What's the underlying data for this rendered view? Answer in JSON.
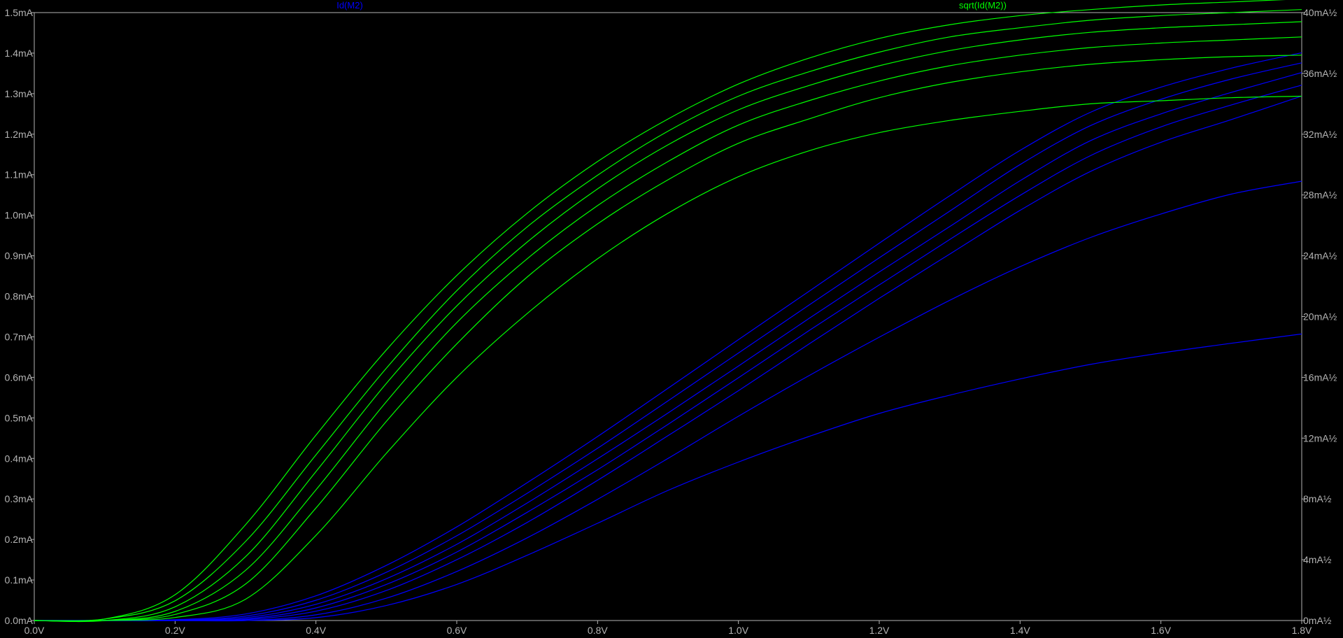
{
  "chart_data": {
    "type": "line",
    "x_tick_labels": [
      "0.0V",
      "0.2V",
      "0.4V",
      "0.6V",
      "0.8V",
      "1.0V",
      "1.2V",
      "1.4V",
      "1.6V",
      "1.8V"
    ],
    "left_tick_labels": [
      "0.0mA",
      "0.1mA",
      "0.2mA",
      "0.3mA",
      "0.4mA",
      "0.5mA",
      "0.6mA",
      "0.7mA",
      "0.8mA",
      "0.9mA",
      "1.0mA",
      "1.1mA",
      "1.2mA",
      "1.3mA",
      "1.4mA",
      "1.5mA"
    ],
    "right_tick_labels": [
      "0mA½",
      "4mA½",
      "8mA½",
      "12mA½",
      "16mA½",
      "20mA½",
      "24mA½",
      "28mA½",
      "32mA½",
      "36mA½",
      "40mA½"
    ],
    "xlim": [
      0,
      1.8
    ],
    "ylim_left": [
      0,
      1.5
    ],
    "ylim_right": [
      0,
      40
    ],
    "grid": false,
    "legend_left": "Id(M2)",
    "legend_right": "sqrt(Id(M2))",
    "colors": {
      "background": "#000000",
      "axis": "#b4b4b4",
      "left_series": "#0000ff",
      "right_series": "#00ff00"
    },
    "x": [
      0,
      0.1,
      0.2,
      0.3,
      0.4,
      0.5,
      0.6,
      0.7,
      0.8,
      0.9,
      1.0,
      1.1,
      1.2,
      1.3,
      1.4,
      1.5,
      1.6,
      1.7,
      1.8
    ],
    "series": [
      {
        "axis": "left",
        "values": [
          0,
          0,
          0.002,
          0.016,
          0.061,
          0.136,
          0.231,
          0.34,
          0.454,
          0.573,
          0.693,
          0.812,
          0.931,
          1.048,
          1.16,
          1.254,
          1.316,
          1.363,
          1.401
        ]
      },
      {
        "axis": "left",
        "values": [
          0,
          0,
          0.001,
          0.011,
          0.05,
          0.119,
          0.209,
          0.314,
          0.425,
          0.542,
          0.66,
          0.778,
          0.895,
          1.01,
          1.125,
          1.221,
          1.286,
          1.336,
          1.376
        ]
      },
      {
        "axis": "left",
        "values": [
          0,
          0,
          0.001,
          0.007,
          0.04,
          0.103,
          0.188,
          0.29,
          0.399,
          0.512,
          0.628,
          0.745,
          0.86,
          0.972,
          1.085,
          1.184,
          1.25,
          1.303,
          1.352
        ]
      },
      {
        "axis": "left",
        "values": [
          0,
          0,
          0,
          0.004,
          0.031,
          0.089,
          0.169,
          0.267,
          0.372,
          0.484,
          0.599,
          0.715,
          0.828,
          0.94,
          1.049,
          1.147,
          1.218,
          1.272,
          1.321
        ]
      },
      {
        "axis": "left",
        "values": [
          0,
          0,
          0,
          0.002,
          0.023,
          0.074,
          0.15,
          0.242,
          0.346,
          0.456,
          0.567,
          0.682,
          0.795,
          0.904,
          1.012,
          1.108,
          1.18,
          1.236,
          1.294
        ]
      },
      {
        "axis": "left",
        "values": [
          0,
          0,
          0,
          0,
          0.014,
          0.055,
          0.121,
          0.204,
          0.299,
          0.4,
          0.504,
          0.604,
          0.699,
          0.79,
          0.873,
          0.945,
          1.003,
          1.052,
          1.084
        ]
      },
      {
        "axis": "left",
        "values": [
          0,
          0,
          0,
          0,
          0.007,
          0.037,
          0.089,
          0.161,
          0.24,
          0.321,
          0.391,
          0.454,
          0.511,
          0.556,
          0.596,
          0.632,
          0.66,
          0.684,
          0.707
        ]
      },
      {
        "axis": "right",
        "values": [
          0,
          0.1,
          1.7,
          6.3,
          12.2,
          17.8,
          22.7,
          26.8,
          30.2,
          33.0,
          35.3,
          37.0,
          38.3,
          39.2,
          39.8,
          40.2,
          40.5,
          40.7,
          40.9
        ]
      },
      {
        "axis": "right",
        "values": [
          0,
          0.1,
          1.3,
          5.2,
          10.9,
          16.6,
          21.7,
          25.9,
          29.3,
          32.2,
          34.5,
          36.1,
          37.4,
          38.4,
          39.0,
          39.5,
          39.8,
          40.0,
          40.2
        ]
      },
      {
        "axis": "right",
        "values": [
          0,
          0,
          0.9,
          4.2,
          9.8,
          15.6,
          20.7,
          24.9,
          28.4,
          31.3,
          33.6,
          35.2,
          36.5,
          37.5,
          38.2,
          38.7,
          39.0,
          39.2,
          39.4
        ]
      },
      {
        "axis": "right",
        "values": [
          0,
          0,
          0.6,
          3.3,
          8.6,
          14.4,
          19.6,
          23.8,
          27.3,
          30.2,
          32.6,
          34.2,
          35.5,
          36.5,
          37.2,
          37.7,
          38.0,
          38.2,
          38.4
        ]
      },
      {
        "axis": "right",
        "values": [
          0,
          0,
          0.4,
          2.4,
          7.4,
          13.1,
          18.2,
          22.6,
          26.1,
          29.0,
          31.4,
          33.0,
          34.4,
          35.4,
          36.1,
          36.6,
          36.9,
          37.1,
          37.2
        ]
      },
      {
        "axis": "right",
        "values": [
          0,
          0,
          0.2,
          1.4,
          5.6,
          11.0,
          16.0,
          20.2,
          23.8,
          26.8,
          29.2,
          30.9,
          32.1,
          32.9,
          33.5,
          34.0,
          34.2,
          34.4,
          34.5
        ]
      }
    ]
  }
}
